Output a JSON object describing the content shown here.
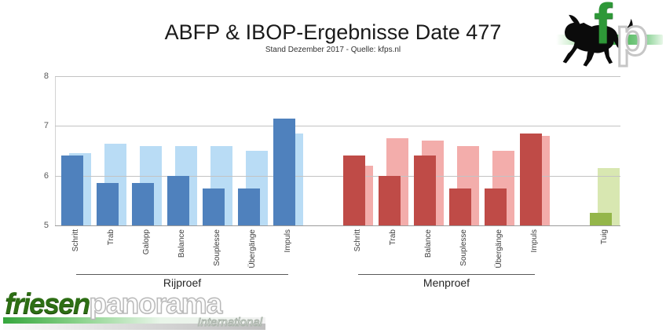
{
  "header": {
    "title": "ABFP & IBOP-Ergebnisse Date 477",
    "subtitle": "Stand Dezember 2017 - Quelle: kfps.nl"
  },
  "brand_logo": {
    "icon": "horse-icon",
    "letter_f": "f",
    "letter_p": "p",
    "accent_green": "#2e9838"
  },
  "footer_logo": {
    "part1": "friesen",
    "part2": "panorama",
    "tagline": "International",
    "green": "#2d6e14"
  },
  "chart_data": {
    "type": "bar",
    "title": "ABFP & IBOP-Ergebnisse Date 477",
    "subtitle": "Stand Dezember 2017 - Quelle: kfps.nl",
    "ylabel": "",
    "xlabel": "",
    "ylim": [
      5,
      8
    ],
    "yticks": [
      5,
      6,
      7,
      8
    ],
    "grid": "horizontal",
    "legend_position": "none",
    "series_names": [
      "ABFP",
      "IBOP"
    ],
    "groups": [
      {
        "label": "Rijproef",
        "categories": [
          "Schritt",
          "Trab",
          "Galopp",
          "Balance",
          "Souplesse",
          "Übergänge",
          "Impuls"
        ],
        "series": [
          {
            "name": "ABFP",
            "color": "#4f81bd",
            "values": [
              6.4,
              5.85,
              5.85,
              6.0,
              5.75,
              5.75,
              7.15
            ]
          },
          {
            "name": "IBOP",
            "color": "#b9dcf5",
            "values": [
              6.45,
              6.65,
              6.6,
              6.6,
              6.6,
              6.5,
              6.85
            ]
          }
        ]
      },
      {
        "label": "Menproef",
        "categories": [
          "Schritt",
          "Trab",
          "Balance",
          "Souplesse",
          "Übergänge",
          "Impuls"
        ],
        "series": [
          {
            "name": "ABFP",
            "color": "#bf4b47",
            "values": [
              6.4,
              6.0,
              6.4,
              5.75,
              5.75,
              6.85
            ]
          },
          {
            "name": "IBOP",
            "color": "#f3adab",
            "values": [
              6.2,
              6.75,
              6.7,
              6.6,
              6.5,
              6.8
            ]
          }
        ]
      },
      {
        "label": "",
        "categories": [
          "Tuig"
        ],
        "series": [
          {
            "name": "ABFP",
            "color": "#94b64a",
            "values": [
              5.25
            ]
          },
          {
            "name": "IBOP",
            "color": "#d8e7b1",
            "values": [
              6.15
            ]
          }
        ]
      }
    ]
  }
}
